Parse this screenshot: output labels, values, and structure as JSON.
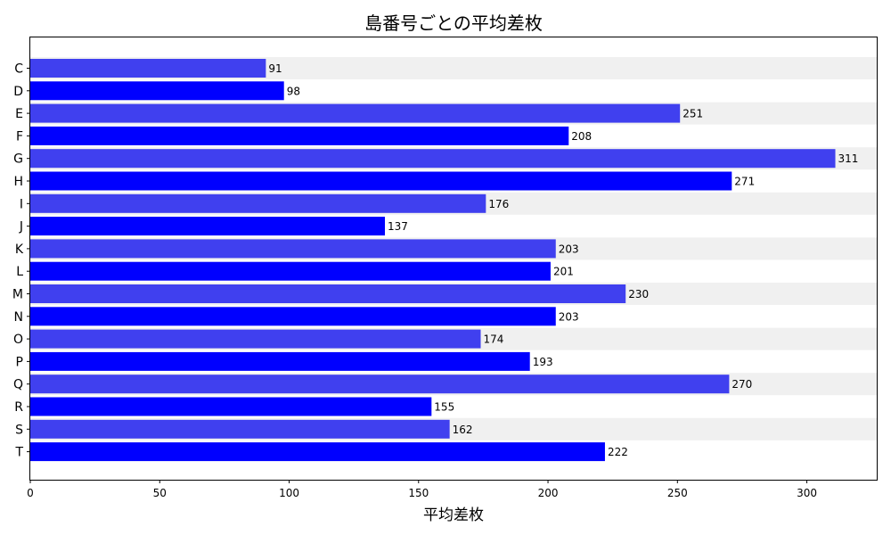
{
  "chart_data": {
    "type": "bar",
    "orientation": "horizontal",
    "title": "島番号ごとの平均差枚",
    "xlabel": "平均差枚",
    "ylabel": "",
    "xlim": [
      0,
      327
    ],
    "xticks": [
      0,
      50,
      100,
      150,
      200,
      250,
      300
    ],
    "grid": false,
    "categories": [
      "C",
      "D",
      "E",
      "F",
      "G",
      "H",
      "I",
      "J",
      "K",
      "L",
      "M",
      "N",
      "O",
      "P",
      "Q",
      "R",
      "S",
      "T"
    ],
    "values": [
      91,
      98,
      251,
      208,
      311,
      271,
      176,
      137,
      203,
      201,
      230,
      203,
      174,
      193,
      270,
      155,
      162,
      222
    ],
    "bar_colors": [
      "#4040ef",
      "#0000ff"
    ],
    "band_color": "#f0f0f0"
  }
}
